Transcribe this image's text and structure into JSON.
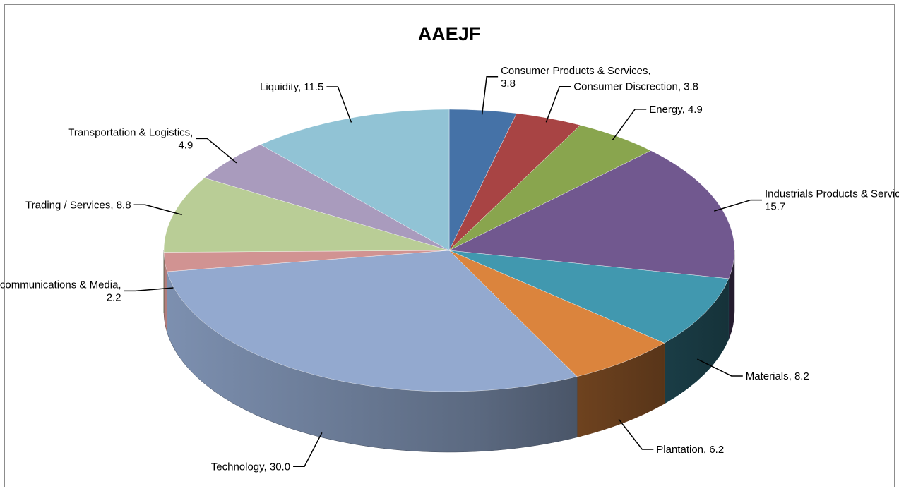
{
  "chart_data": {
    "type": "pie",
    "style": "3d",
    "title": "AAEJF",
    "legend": "none",
    "slices": [
      {
        "label": "Consumer Products & Services",
        "value": 3.8,
        "display": "3.8",
        "color": "#4572a7"
      },
      {
        "label": "Consumer Discrection",
        "value": 3.8,
        "display": "3.8",
        "color": "#a84444"
      },
      {
        "label": "Energy",
        "value": 4.9,
        "display": "4.9",
        "color": "#89a54e"
      },
      {
        "label": "Industrials Products & Services",
        "value": 15.7,
        "display": "15.7",
        "color": "#71588f"
      },
      {
        "label": "Materials",
        "value": 8.2,
        "display": "8.2",
        "color": "#4198af"
      },
      {
        "label": "Plantation",
        "value": 6.2,
        "display": "6.2",
        "color": "#db843d"
      },
      {
        "label": "Technology",
        "value": 30.0,
        "display": "30.0",
        "color": "#93a9cf"
      },
      {
        "label": "Telecommunications & Media",
        "value": 2.2,
        "display": "2.2",
        "color": "#d19392"
      },
      {
        "label": "Trading / Services",
        "value": 8.8,
        "display": "8.8",
        "color": "#b9cd96"
      },
      {
        "label": "Transportation & Logistics",
        "value": 4.9,
        "display": "4.9",
        "color": "#a99bbd"
      },
      {
        "label": "Liquidity",
        "value": 11.5,
        "display": "11.5",
        "color": "#91c3d5"
      }
    ]
  }
}
